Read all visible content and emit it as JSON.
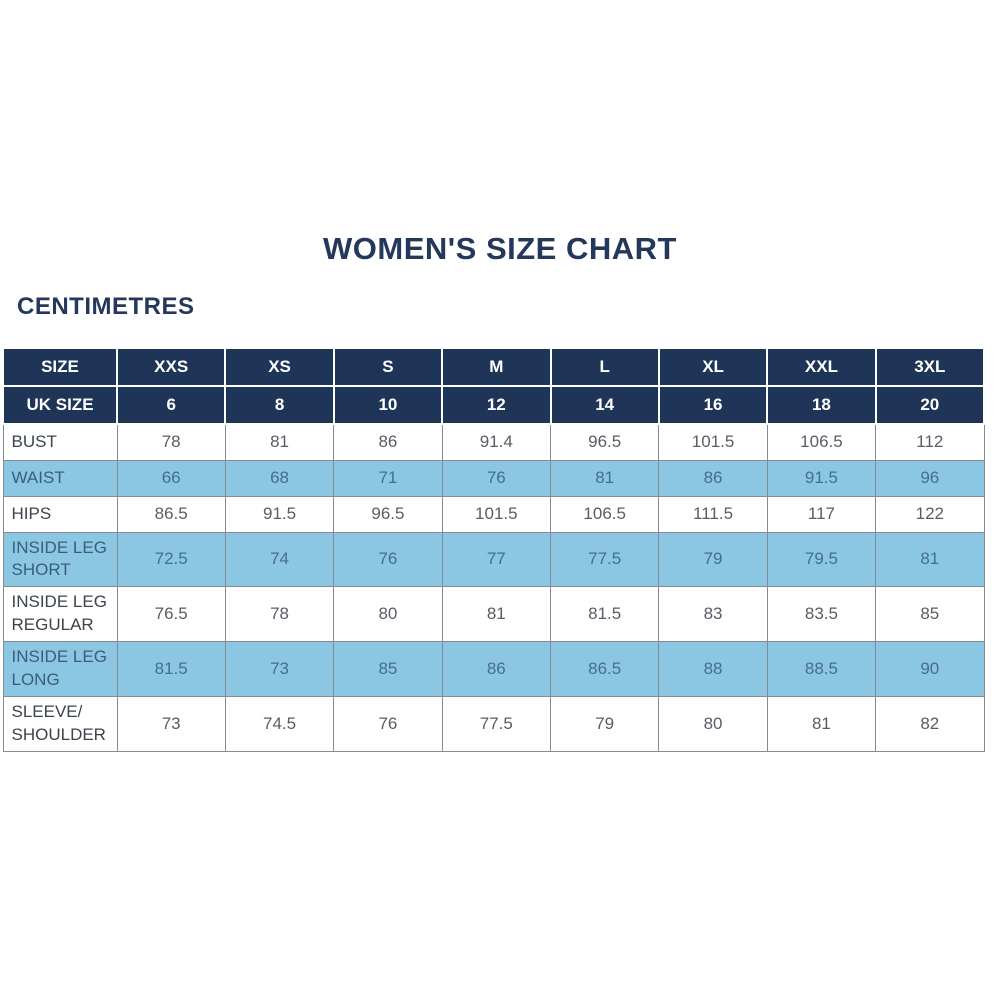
{
  "page": {
    "title": "WOMEN'S SIZE CHART",
    "unit_label": "CENTIMETRES"
  },
  "colors": {
    "header_navy": "#1f3557",
    "row_light_blue": "#8bc7e3",
    "border_gray": "#848b93",
    "title_navy": "#24385c",
    "label_text": "#3c434d",
    "value_text": "#585d65",
    "blue_row_text": "#466e8c"
  },
  "chart_data": {
    "type": "table",
    "title": "WOMEN'S SIZE CHART",
    "unit": "CENTIMETRES",
    "columns": [
      "SIZE",
      "XXS",
      "XS",
      "S",
      "M",
      "L",
      "XL",
      "XXL",
      "3XL"
    ],
    "uk_sizes": [
      "6",
      "8",
      "10",
      "12",
      "14",
      "16",
      "18",
      "20"
    ],
    "rows": [
      {
        "label": "BUST",
        "values": [
          "78",
          "81",
          "86",
          "91.4",
          "96.5",
          "101.5",
          "106.5",
          "112"
        ]
      },
      {
        "label": "WAIST",
        "values": [
          "66",
          "68",
          "71",
          "76",
          "81",
          "86",
          "91.5",
          "96"
        ]
      },
      {
        "label": "HIPS",
        "values": [
          "86.5",
          "91.5",
          "96.5",
          "101.5",
          "106.5",
          "111.5",
          "117",
          "122"
        ]
      },
      {
        "label": "INSIDE LEG SHORT",
        "values": [
          "72.5",
          "74",
          "76",
          "77",
          "77.5",
          "79",
          "79.5",
          "81"
        ]
      },
      {
        "label": "INSIDE LEG REGULAR",
        "values": [
          "76.5",
          "78",
          "80",
          "81",
          "81.5",
          "83",
          "83.5",
          "85"
        ]
      },
      {
        "label": "INSIDE LEG LONG",
        "values": [
          "81.5",
          "73",
          "85",
          "86",
          "86.5",
          "88",
          "88.5",
          "90"
        ]
      },
      {
        "label": "SLEEVE/ SHOULDER",
        "values": [
          "73",
          "74.5",
          "76",
          "77.5",
          "79",
          "80",
          "81",
          "82"
        ]
      }
    ]
  },
  "table": {
    "size_row_label": "SIZE",
    "size_row_values": [
      "XXS",
      "XS",
      "S",
      "M",
      "L",
      "XL",
      "XXL",
      "3XL"
    ],
    "uk_row_label": "UK SIZE",
    "uk_row_values": [
      "6",
      "8",
      "10",
      "12",
      "14",
      "16",
      "18",
      "20"
    ],
    "rows": [
      {
        "label": "BUST",
        "values": [
          "78",
          "81",
          "86",
          "91.4",
          "96.5",
          "101.5",
          "106.5",
          "112"
        ]
      },
      {
        "label": "WAIST",
        "values": [
          "66",
          "68",
          "71",
          "76",
          "81",
          "86",
          "91.5",
          "96"
        ]
      },
      {
        "label": "HIPS",
        "values": [
          "86.5",
          "91.5",
          "96.5",
          "101.5",
          "106.5",
          "111.5",
          "117",
          "122"
        ]
      },
      {
        "label": "INSIDE LEG SHORT",
        "values": [
          "72.5",
          "74",
          "76",
          "77",
          "77.5",
          "79",
          "79.5",
          "81"
        ]
      },
      {
        "label": "INSIDE LEG REGULAR",
        "values": [
          "76.5",
          "78",
          "80",
          "81",
          "81.5",
          "83",
          "83.5",
          "85"
        ]
      },
      {
        "label": "INSIDE LEG LONG",
        "values": [
          "81.5",
          "73",
          "85",
          "86",
          "86.5",
          "88",
          "88.5",
          "90"
        ]
      },
      {
        "label": "SLEEVE/ SHOULDER",
        "values": [
          "73",
          "74.5",
          "76",
          "77.5",
          "79",
          "80",
          "81",
          "82"
        ]
      }
    ]
  }
}
